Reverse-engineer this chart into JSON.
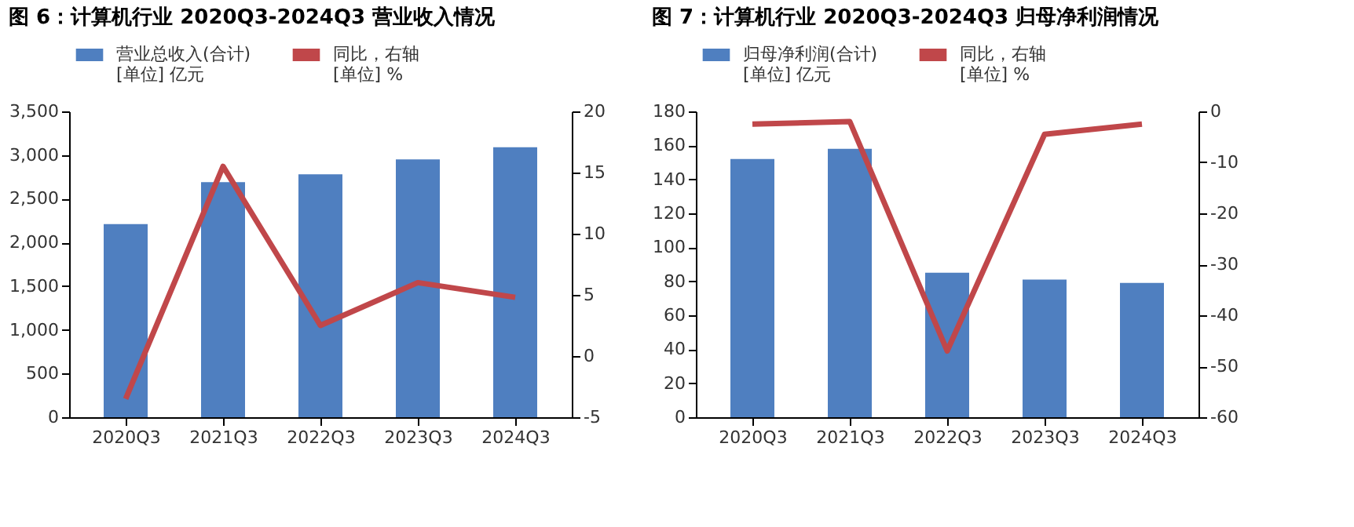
{
  "chart_data": [
    {
      "type": "bar",
      "title": "图 6：计算机行业 2020Q3-2024Q3 营业收入情况",
      "categories": [
        "2020Q3",
        "2021Q3",
        "2022Q3",
        "2023Q3",
        "2024Q3"
      ],
      "series": [
        {
          "name": "营业总收入(合计)\n[单位] 亿元",
          "color": "#4f7fc0",
          "values": [
            2210,
            2690,
            2780,
            2950,
            3090
          ]
        },
        {
          "name": "同比，右轴\n[单位] %",
          "color": "#c0474a",
          "type": "line",
          "axis": "y2",
          "values": [
            -3.5,
            15.5,
            2.5,
            6,
            4.8
          ]
        }
      ],
      "ylim": [
        0,
        3500
      ],
      "yticks": [
        {
          "value": 0,
          "label": "0"
        },
        {
          "value": 500,
          "label": "500"
        },
        {
          "value": 1000,
          "label": "1,000"
        },
        {
          "value": 1500,
          "label": "1,500"
        },
        {
          "value": 2000,
          "label": "2,000"
        },
        {
          "value": 2500,
          "label": "2,500"
        },
        {
          "value": 3000,
          "label": "3,000"
        },
        {
          "value": 3500,
          "label": "3,500"
        }
      ],
      "y2lim": [
        -5,
        20
      ],
      "y2ticks": [
        -5,
        0,
        5,
        10,
        15,
        20
      ],
      "legend": "top",
      "grid": false,
      "marker": "none"
    },
    {
      "type": "bar",
      "title": "图 7：计算机行业 2020Q3-2024Q3 归母净利润情况",
      "categories": [
        "2020Q3",
        "2021Q3",
        "2022Q3",
        "2023Q3",
        "2024Q3"
      ],
      "series": [
        {
          "name": "归母净利润(合计)\n[单位] 亿元",
          "color": "#4f7fc0",
          "values": [
            152,
            158,
            85,
            81,
            79
          ]
        },
        {
          "name": "同比，右轴\n[单位] %",
          "color": "#c0474a",
          "type": "line",
          "axis": "y2",
          "values": [
            -2.5,
            -2,
            -47,
            -4.5,
            -2.5
          ]
        }
      ],
      "ylim": [
        0,
        180
      ],
      "yticks": [
        0,
        20,
        40,
        60,
        80,
        100,
        120,
        140,
        160,
        180
      ],
      "y2lim": [
        -60,
        0
      ],
      "y2ticks": [
        -60,
        -50,
        -40,
        -30,
        -20,
        -10,
        0
      ],
      "legend": "top",
      "grid": false,
      "marker": "none"
    }
  ]
}
